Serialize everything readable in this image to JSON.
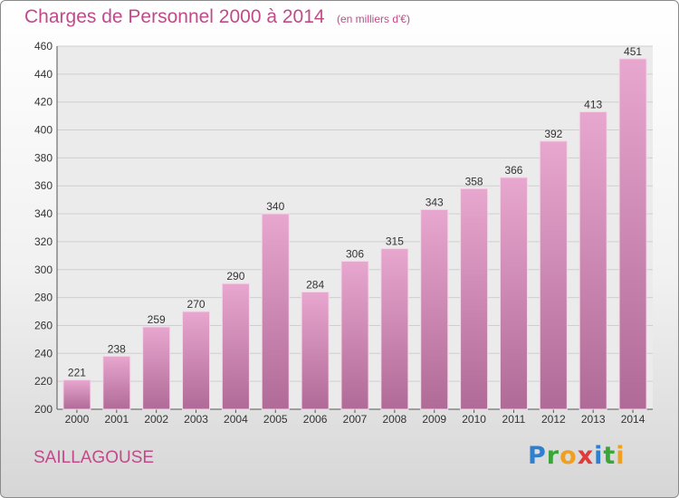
{
  "chart_data": {
    "type": "bar",
    "title": "Charges de Personnel 2000 à 2014",
    "subtitle": "(en milliers d'€)",
    "categories": [
      "2000",
      "2001",
      "2002",
      "2003",
      "2004",
      "2005",
      "2006",
      "2007",
      "2008",
      "2009",
      "2010",
      "2011",
      "2012",
      "2013",
      "2014"
    ],
    "values": [
      221,
      238,
      259,
      270,
      290,
      340,
      284,
      306,
      315,
      343,
      358,
      366,
      392,
      413,
      451
    ],
    "ylim": [
      200,
      460
    ],
    "yticks": [
      200,
      220,
      240,
      260,
      280,
      300,
      320,
      340,
      360,
      380,
      400,
      420,
      440,
      460
    ],
    "grid": true,
    "data_labels": true
  },
  "place_name": "SAILLAGOUSE",
  "logo": {
    "text": "Proxiti"
  },
  "colors": {
    "title": "#c24a8a",
    "bar_top": "#e8a7cf",
    "bar_bottom": "#b06a97",
    "grid": "#cfcfcf"
  }
}
